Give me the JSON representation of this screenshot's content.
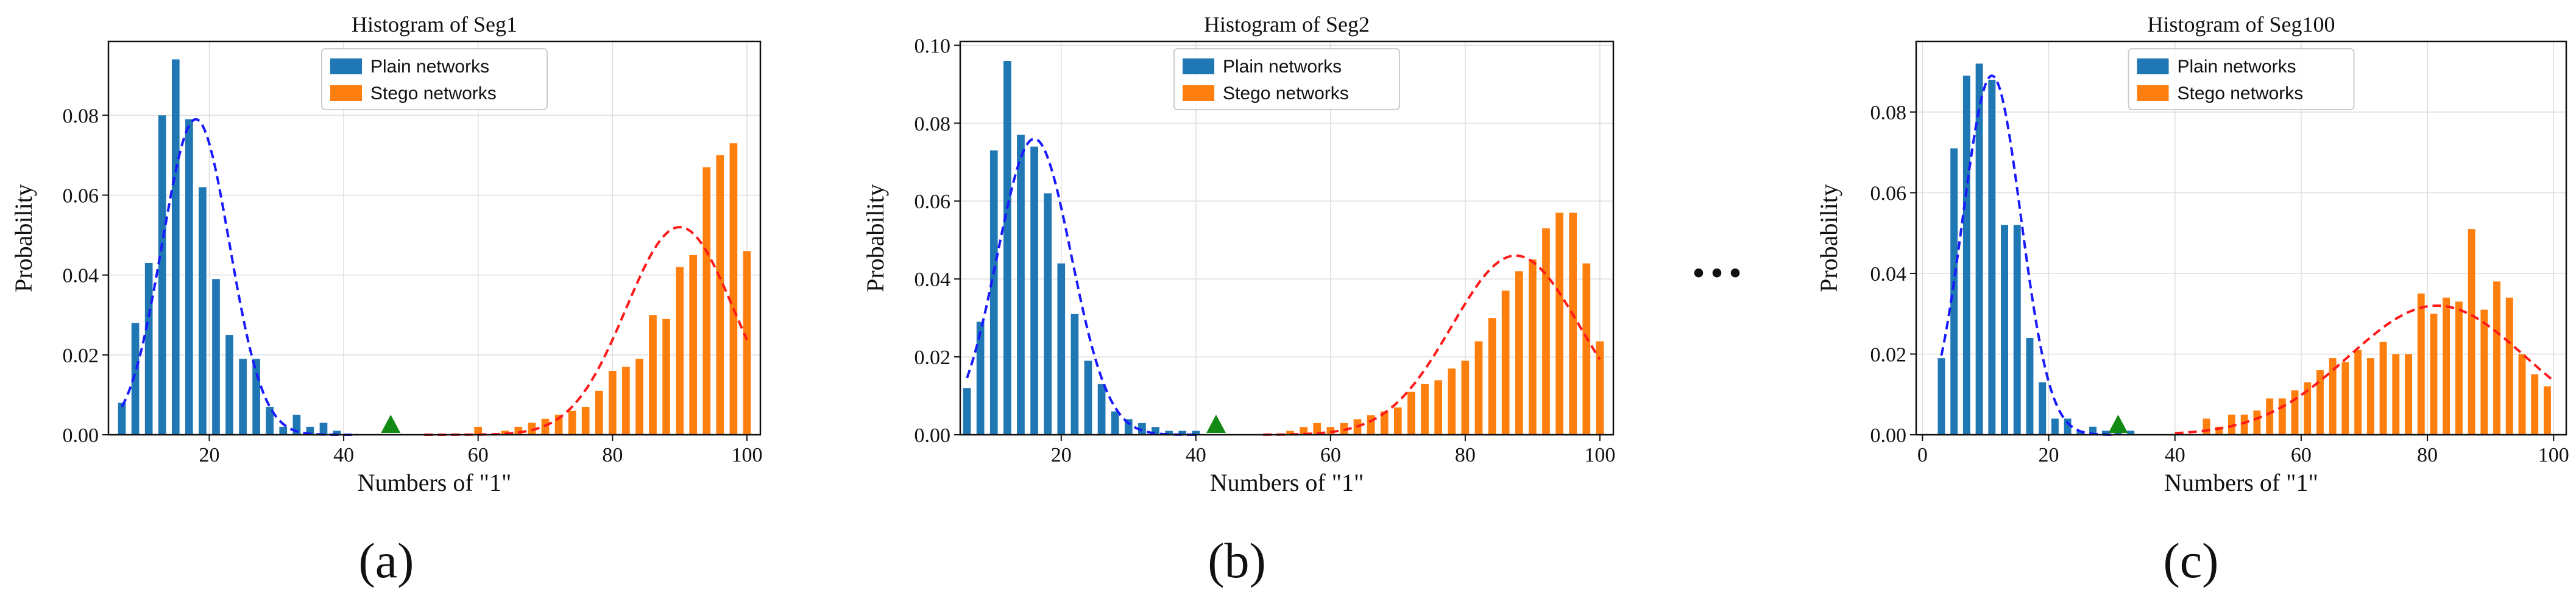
{
  "figure": {
    "panel_labels": [
      "(a)",
      "(b)",
      "(c)"
    ],
    "ellipsis": "···"
  },
  "colors": {
    "plain": "#1f77b4",
    "stego": "#ff7f0e",
    "plain_fit": "#1a1aff",
    "stego_fit": "#ff1a1a",
    "threshold": "#138a13",
    "grid": "#dddddd"
  },
  "chart_data": [
    {
      "type": "bar",
      "title": "Histogram of Seg1",
      "xlabel": "Numbers of \"1\"",
      "ylabel": "Probability",
      "xlim": [
        5,
        102
      ],
      "ylim": [
        0,
        0.0985
      ],
      "xticks": [
        20,
        40,
        60,
        80,
        100
      ],
      "xtick_labels": [
        "20",
        "40",
        "60",
        "80",
        "100"
      ],
      "yticks": [
        0,
        0.02,
        0.04,
        0.06,
        0.08
      ],
      "ytick_labels": [
        "0.00",
        "0.02",
        "0.04",
        "0.06",
        "0.08"
      ],
      "legend": {
        "position": "top-center",
        "entries": [
          "Plain networks",
          "Stego networks"
        ]
      },
      "series": [
        {
          "name": "Plain networks",
          "x": [
            7,
            9,
            11,
            13,
            15,
            17,
            19,
            21,
            23,
            25,
            27,
            29,
            31,
            33,
            35,
            37,
            39
          ],
          "values": [
            0.008,
            0.028,
            0.043,
            0.08,
            0.094,
            0.079,
            0.062,
            0.039,
            0.025,
            0.019,
            0.019,
            0.007,
            0.002,
            0.005,
            0.002,
            0.003,
            0.001
          ]
        },
        {
          "name": "Stego networks",
          "x": [
            60,
            64,
            66,
            68,
            70,
            72,
            74,
            76,
            78,
            80,
            82,
            84,
            86,
            88,
            90,
            92,
            94,
            96,
            98,
            100
          ],
          "values": [
            0.002,
            0.001,
            0.002,
            0.003,
            0.004,
            0.005,
            0.006,
            0.007,
            0.011,
            0.016,
            0.017,
            0.019,
            0.03,
            0.029,
            0.042,
            0.045,
            0.067,
            0.07,
            0.073,
            0.046
          ]
        }
      ],
      "fits": [
        {
          "name": "Plain networks",
          "mu": 18,
          "sigma": 5,
          "peak": 0.079,
          "range": [
            7,
            42
          ]
        },
        {
          "name": "Stego networks",
          "mu": 90,
          "sigma": 8,
          "peak": 0.052,
          "range": [
            52,
            100
          ]
        }
      ],
      "threshold": 47
    },
    {
      "type": "bar",
      "title": "Histogram of Seg2",
      "xlabel": "Numbers of \"1\"",
      "ylabel": "Probability",
      "xlim": [
        5,
        102
      ],
      "ylim": [
        0,
        0.101
      ],
      "xticks": [
        20,
        40,
        60,
        80,
        100
      ],
      "xtick_labels": [
        "20",
        "40",
        "60",
        "80",
        "100"
      ],
      "yticks": [
        0,
        0.02,
        0.04,
        0.06,
        0.08,
        0.1
      ],
      "ytick_labels": [
        "0.00",
        "0.02",
        "0.04",
        "0.06",
        "0.08",
        "0.10"
      ],
      "legend": {
        "position": "top-center",
        "entries": [
          "Plain networks",
          "Stego networks"
        ]
      },
      "series": [
        {
          "name": "Plain networks",
          "x": [
            6,
            8,
            10,
            12,
            14,
            16,
            18,
            20,
            22,
            24,
            26,
            28,
            30,
            32,
            34,
            36,
            38,
            40
          ],
          "values": [
            0.012,
            0.029,
            0.073,
            0.096,
            0.077,
            0.074,
            0.062,
            0.044,
            0.031,
            0.019,
            0.013,
            0.006,
            0.004,
            0.003,
            0.002,
            0.001,
            0.001,
            0.001
          ]
        },
        {
          "name": "Stego networks",
          "x": [
            54,
            56,
            58,
            60,
            62,
            64,
            66,
            68,
            70,
            72,
            74,
            76,
            78,
            80,
            82,
            84,
            86,
            88,
            90,
            92,
            94,
            96,
            98,
            100
          ],
          "values": [
            0.001,
            0.002,
            0.003,
            0.002,
            0.003,
            0.004,
            0.005,
            0.006,
            0.007,
            0.011,
            0.013,
            0.014,
            0.017,
            0.019,
            0.024,
            0.03,
            0.037,
            0.042,
            0.045,
            0.053,
            0.057,
            0.057,
            0.044,
            0.024
          ]
        }
      ],
      "fits": [
        {
          "name": "Plain networks",
          "mu": 16,
          "sigma": 5.5,
          "peak": 0.076,
          "range": [
            6,
            40
          ]
        },
        {
          "name": "Stego networks",
          "mu": 87.5,
          "sigma": 9.5,
          "peak": 0.046,
          "range": [
            50,
            100
          ]
        }
      ],
      "threshold": 43
    },
    {
      "type": "bar",
      "title": "Histogram of Seg100",
      "xlabel": "Numbers of \"1\"",
      "ylabel": "Probability",
      "xlim": [
        -1,
        102
      ],
      "ylim": [
        0,
        0.0975
      ],
      "xticks": [
        0,
        20,
        40,
        60,
        80,
        100
      ],
      "xtick_labels": [
        "0",
        "20",
        "40",
        "60",
        "80",
        "100"
      ],
      "yticks": [
        0,
        0.02,
        0.04,
        0.06,
        0.08
      ],
      "ytick_labels": [
        "0.00",
        "0.02",
        "0.04",
        "0.06",
        "0.08"
      ],
      "legend": {
        "position": "top-center",
        "entries": [
          "Plain networks",
          "Stego networks"
        ]
      },
      "series": [
        {
          "name": "Plain networks",
          "x": [
            3,
            5,
            7,
            9,
            11,
            13,
            15,
            17,
            19,
            21,
            23,
            25,
            27,
            29,
            31,
            33
          ],
          "values": [
            0.019,
            0.071,
            0.089,
            0.092,
            0.088,
            0.052,
            0.052,
            0.024,
            0.013,
            0.004,
            0.004,
            0.001,
            0.002,
            0.001,
            0.001,
            0.001
          ]
        },
        {
          "name": "Stego networks",
          "x": [
            45,
            47,
            49,
            51,
            53,
            55,
            57,
            59,
            61,
            63,
            65,
            67,
            69,
            71,
            73,
            75,
            77,
            79,
            81,
            83,
            85,
            87,
            89,
            91,
            93,
            95,
            97,
            99
          ],
          "values": [
            0.004,
            0.002,
            0.005,
            0.005,
            0.006,
            0.009,
            0.009,
            0.011,
            0.013,
            0.016,
            0.019,
            0.018,
            0.021,
            0.019,
            0.023,
            0.02,
            0.02,
            0.035,
            0.03,
            0.034,
            0.033,
            0.051,
            0.031,
            0.038,
            0.034,
            0.02,
            0.015,
            0.012
          ]
        }
      ],
      "fits": [
        {
          "name": "Plain networks",
          "mu": 11,
          "sigma": 4.6,
          "peak": 0.089,
          "range": [
            3,
            30
          ]
        },
        {
          "name": "Stego networks",
          "mu": 81.5,
          "sigma": 14,
          "peak": 0.032,
          "range": [
            40,
            100
          ]
        }
      ],
      "threshold": 31
    }
  ]
}
